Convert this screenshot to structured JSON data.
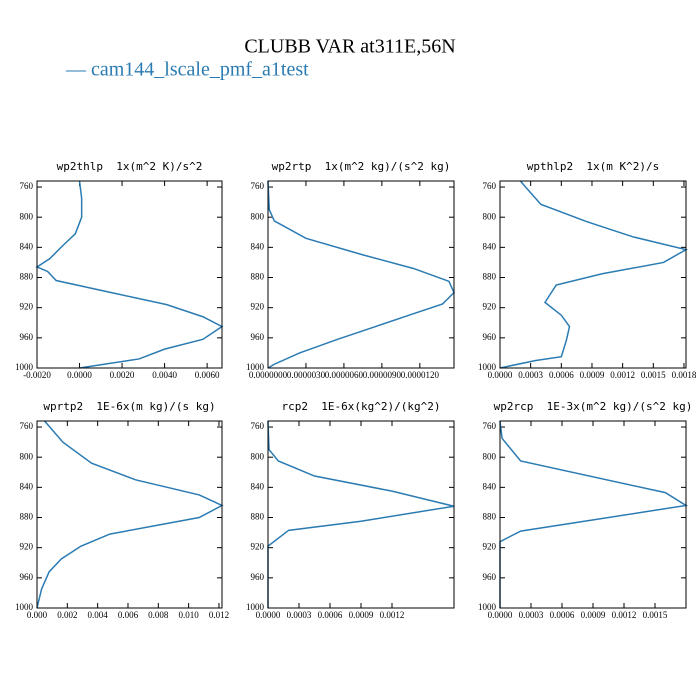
{
  "figure": {
    "title": "CLUBB VAR at311E,56N",
    "series": {
      "name": "— cam144_lscale_pmf_a1test",
      "color": "#2b7bb3"
    }
  },
  "chart_data": [
    {
      "type": "line",
      "title": "wp2thlp  1x(m^2 K)/s^2",
      "y": [
        752,
        775,
        800,
        822,
        838,
        855,
        866,
        872,
        884,
        900,
        916,
        932,
        945,
        962,
        975,
        988,
        1000
      ],
      "values": [
        0.0,
        0.0001,
        0.0001,
        -0.0002,
        -0.0008,
        -0.0014,
        -0.002,
        -0.0015,
        -0.0011,
        0.0015,
        0.0041,
        0.0058,
        0.0067,
        0.0058,
        0.004,
        0.0028,
        0.0
      ],
      "xlim": [
        -0.002,
        0.0067
      ],
      "xticks": [
        {
          "value": -0.002,
          "label": "-0.0020"
        },
        {
          "value": 0,
          "label": "0.0000"
        },
        {
          "value": 0.002,
          "label": "0.0020"
        },
        {
          "value": 0.004,
          "label": "0.0040"
        },
        {
          "value": 0.006,
          "label": "0.0060"
        }
      ],
      "ylim": [
        1000,
        752
      ],
      "yticks": [
        760,
        800,
        840,
        880,
        920,
        960,
        1000
      ]
    },
    {
      "type": "line",
      "title": "wp2rtp  1x(m^2 kg)/(s^2 kg)",
      "y": [
        752,
        790,
        805,
        828,
        850,
        868,
        885,
        900,
        915,
        928,
        945,
        962,
        980,
        995,
        1000
      ],
      "values": [
        0,
        1e-07,
        5e-07,
        3e-06,
        7.5e-06,
        1.15e-05,
        1.43e-05,
        1.47e-05,
        1.38e-05,
        1.15e-05,
        8.5e-06,
        5.5e-06,
        2.5e-06,
        5e-07,
        0
      ],
      "xlim": [
        0,
        1.47e-05
      ],
      "xticks": [
        {
          "value": 0,
          "label": "0.0000000"
        },
        {
          "value": 3e-06,
          "label": "0.0000030"
        },
        {
          "value": 6e-06,
          "label": "0.0000060"
        },
        {
          "value": 9e-06,
          "label": "0.0000090"
        },
        {
          "value": 1.2e-05,
          "label": "0.0000120"
        }
      ],
      "ylim": [
        1000,
        752
      ],
      "yticks": [
        760,
        800,
        840,
        880,
        920,
        960,
        1000
      ]
    },
    {
      "type": "line",
      "title": "wpthlp2  1x(m K^2)/s",
      "y": [
        752,
        760,
        783,
        806,
        826,
        843,
        860,
        875,
        890,
        913,
        930,
        945,
        963,
        985,
        990,
        1000
      ],
      "values": [
        0.0002,
        0.00025,
        0.0004,
        0.00085,
        0.0013,
        0.00182,
        0.0016,
        0.001,
        0.00055,
        0.00044,
        0.0006,
        0.00068,
        0.00065,
        0.0006,
        0.00035,
        0
      ],
      "xlim": [
        0,
        0.00182
      ],
      "xticks": [
        {
          "value": 0,
          "label": "0.0000"
        },
        {
          "value": 0.0003,
          "label": "0.0003"
        },
        {
          "value": 0.0006,
          "label": "0.0006"
        },
        {
          "value": 0.0009,
          "label": "0.0009"
        },
        {
          "value": 0.0012,
          "label": "0.0012"
        },
        {
          "value": 0.0015,
          "label": "0.0015"
        },
        {
          "value": 0.0018,
          "label": "0.0018"
        }
      ],
      "ylim": [
        1000,
        752
      ],
      "yticks": [
        760,
        800,
        840,
        880,
        920,
        960,
        1000
      ]
    },
    {
      "type": "line",
      "title": "wprtp2  1E-6x(m kg)/(s kg)",
      "y": [
        752,
        780,
        808,
        830,
        850,
        864,
        880,
        902,
        918,
        935,
        952,
        975,
        1000
      ],
      "values": [
        0.0005,
        0.0017,
        0.0036,
        0.0065,
        0.0107,
        0.0122,
        0.0107,
        0.0048,
        0.0029,
        0.0016,
        0.0008,
        0.0003,
        0
      ],
      "xlim": [
        0,
        0.0122
      ],
      "xticks": [
        {
          "value": 0,
          "label": "0.000"
        },
        {
          "value": 0.002,
          "label": "0.002"
        },
        {
          "value": 0.004,
          "label": "0.004"
        },
        {
          "value": 0.006,
          "label": "0.006"
        },
        {
          "value": 0.008,
          "label": "0.008"
        },
        {
          "value": 0.01,
          "label": "0.010"
        },
        {
          "value": 0.012,
          "label": "0.012"
        }
      ],
      "ylim": [
        1000,
        752
      ],
      "yticks": [
        760,
        800,
        840,
        880,
        920,
        960,
        1000
      ]
    },
    {
      "type": "line",
      "title": "rcp2  1E-6x(kg^2)/(kg^2)",
      "y": [
        752,
        790,
        805,
        825,
        845,
        865,
        885,
        897,
        918,
        1000
      ],
      "values": [
        0,
        1e-05,
        0.0001,
        0.00045,
        0.0012,
        0.0018,
        0.0009,
        0.0002,
        0,
        0
      ],
      "xlim": [
        0,
        0.0018
      ],
      "xticks": [
        {
          "value": 0,
          "label": "0.0000"
        },
        {
          "value": 0.0003,
          "label": "0.0003"
        },
        {
          "value": 0.0006,
          "label": "0.0006"
        },
        {
          "value": 0.0009,
          "label": "0.0009"
        },
        {
          "value": 0.0012,
          "label": "0.0012"
        }
      ],
      "ylim": [
        1000,
        752
      ],
      "yticks": [
        760,
        800,
        840,
        880,
        920,
        960,
        1000
      ]
    },
    {
      "type": "line",
      "title": "wp2rcp  1E-3x(m^2 kg)/(s^2 kg)",
      "y": [
        752,
        775,
        805,
        847,
        864,
        898,
        912,
        1000
      ],
      "values": [
        0,
        2e-05,
        0.0002,
        0.0016,
        0.0018,
        0.0002,
        0,
        0
      ],
      "xlim": [
        0,
        0.0018
      ],
      "xticks": [
        {
          "value": 0,
          "label": "0.0000"
        },
        {
          "value": 0.0003,
          "label": "0.0003"
        },
        {
          "value": 0.0006,
          "label": "0.0006"
        },
        {
          "value": 0.0009,
          "label": "0.0009"
        },
        {
          "value": 0.0012,
          "label": "0.0012"
        },
        {
          "value": 0.0015,
          "label": "0.0015"
        }
      ],
      "ylim": [
        1000,
        752
      ],
      "yticks": [
        760,
        800,
        840,
        880,
        920,
        960,
        1000
      ]
    }
  ]
}
